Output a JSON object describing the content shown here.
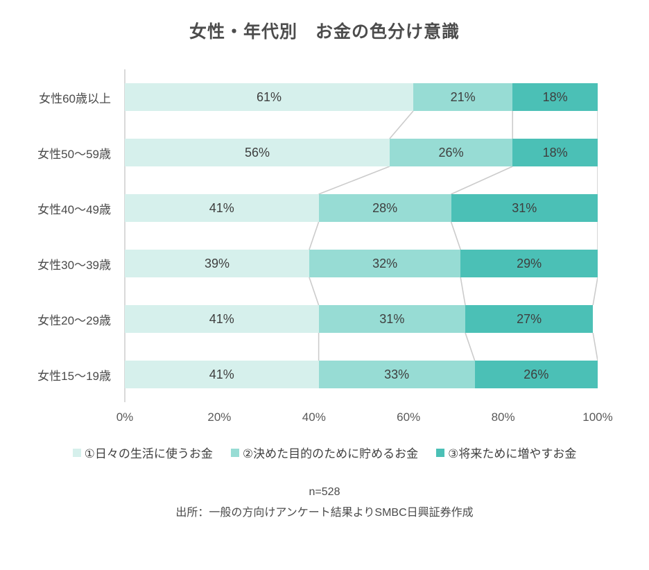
{
  "title": "女性・年代別　お金の色分け意識",
  "chart_data": {
    "type": "bar",
    "orientation": "horizontal",
    "stacked": true,
    "title": "女性・年代別　お金の色分け意識",
    "categories": [
      "女性60歳以上",
      "女性50〜59歳",
      "女性40〜49歳",
      "女性30〜39歳",
      "女性20〜29歳",
      "女性15〜19歳"
    ],
    "series": [
      {
        "name": "①日々の生活に使うお金",
        "color": "#d6f0ec",
        "values": [
          61,
          56,
          41,
          39,
          41,
          41
        ]
      },
      {
        "name": "②決めた目的のために貯めるお金",
        "color": "#97dcd4",
        "values": [
          21,
          26,
          28,
          32,
          31,
          33
        ]
      },
      {
        "name": "③将来ために増やすお金",
        "color": "#4bc0b6",
        "values": [
          18,
          18,
          31,
          29,
          27,
          26
        ]
      }
    ],
    "data_label_suffix": "%",
    "x_ticks": [
      "0%",
      "20%",
      "40%",
      "60%",
      "80%",
      "100%"
    ],
    "xlim": [
      0,
      100
    ],
    "grid": false,
    "legend_position": "bottom",
    "connector_color": "#cbcbcb"
  },
  "footnotes": {
    "sample_size": "n=528",
    "source": "出所：一般の方向けアンケート結果よりSMBC日興証券作成"
  }
}
